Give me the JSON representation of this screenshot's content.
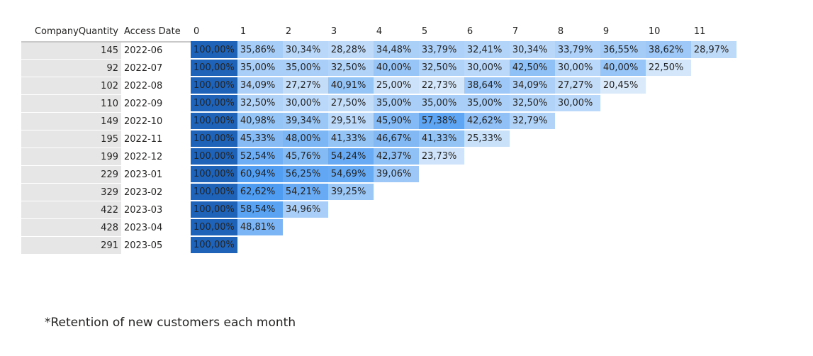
{
  "chart_data": {
    "type": "heatmap",
    "row_headers": [
      "CompanyQuantity",
      "Access Date"
    ],
    "columns": [
      "0",
      "1",
      "2",
      "3",
      "4",
      "5",
      "6",
      "7",
      "8",
      "9",
      "10",
      "11"
    ],
    "rows": [
      {
        "quantity": "145",
        "date": "2022-06",
        "values": [
          "100,00%",
          "35,86%",
          "30,34%",
          "28,28%",
          "34,48%",
          "33,79%",
          "32,41%",
          "30,34%",
          "33,79%",
          "36,55%",
          "38,62%",
          "28,97%"
        ]
      },
      {
        "quantity": "92",
        "date": "2022-07",
        "values": [
          "100,00%",
          "35,00%",
          "35,00%",
          "32,50%",
          "40,00%",
          "32,50%",
          "30,00%",
          "42,50%",
          "30,00%",
          "40,00%",
          "22,50%"
        ]
      },
      {
        "quantity": "102",
        "date": "2022-08",
        "values": [
          "100,00%",
          "34,09%",
          "27,27%",
          "40,91%",
          "25,00%",
          "22,73%",
          "38,64%",
          "34,09%",
          "27,27%",
          "20,45%"
        ]
      },
      {
        "quantity": "110",
        "date": "2022-09",
        "values": [
          "100,00%",
          "32,50%",
          "30,00%",
          "27,50%",
          "35,00%",
          "35,00%",
          "35,00%",
          "32,50%",
          "30,00%"
        ]
      },
      {
        "quantity": "149",
        "date": "2022-10",
        "values": [
          "100,00%",
          "40,98%",
          "39,34%",
          "29,51%",
          "45,90%",
          "57,38%",
          "42,62%",
          "32,79%"
        ]
      },
      {
        "quantity": "195",
        "date": "2022-11",
        "values": [
          "100,00%",
          "45,33%",
          "48,00%",
          "41,33%",
          "46,67%",
          "41,33%",
          "25,33%"
        ]
      },
      {
        "quantity": "199",
        "date": "2022-12",
        "values": [
          "100,00%",
          "52,54%",
          "45,76%",
          "54,24%",
          "42,37%",
          "23,73%"
        ]
      },
      {
        "quantity": "229",
        "date": "2023-01",
        "values": [
          "100,00%",
          "60,94%",
          "56,25%",
          "54,69%",
          "39,06%"
        ]
      },
      {
        "quantity": "329",
        "date": "2023-02",
        "values": [
          "100,00%",
          "62,62%",
          "54,21%",
          "39,25%"
        ]
      },
      {
        "quantity": "422",
        "date": "2023-03",
        "values": [
          "100,00%",
          "58,54%",
          "34,96%"
        ]
      },
      {
        "quantity": "428",
        "date": "2023-04",
        "values": [
          "100,00%",
          "48,81%"
        ]
      },
      {
        "quantity": "291",
        "date": "2023-05",
        "values": [
          "100,00%"
        ]
      }
    ],
    "color_scale": {
      "low": "#dcebfb",
      "high": "#4e9cf2",
      "max": "#1e63b8"
    }
  },
  "footnote": "*Retention of new customers each month"
}
